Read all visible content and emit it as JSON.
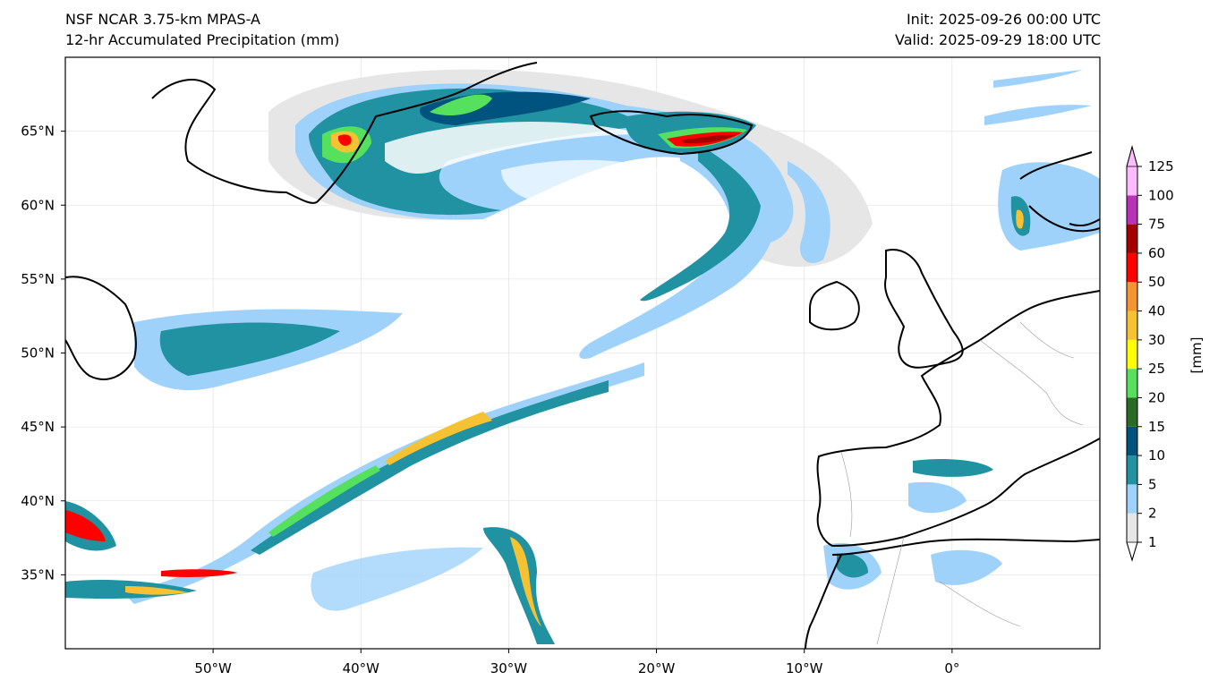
{
  "header": {
    "model": "NSF NCAR 3.75-km MPAS-A",
    "field": "12-hr Accumulated Precipitation (mm)",
    "init": "Init: 2025-09-26 00:00 UTC",
    "valid": "Valid: 2025-09-29 18:00 UTC"
  },
  "map": {
    "projection": "equirectangular",
    "lon_range": [
      -60,
      10
    ],
    "lat_range": [
      30,
      70
    ],
    "lat_ticks": [
      {
        "value": 65,
        "label": "65°N"
      },
      {
        "value": 60,
        "label": "60°N"
      },
      {
        "value": 55,
        "label": "55°N"
      },
      {
        "value": 50,
        "label": "50°N"
      },
      {
        "value": 45,
        "label": "45°N"
      },
      {
        "value": 40,
        "label": "40°N"
      },
      {
        "value": 35,
        "label": "35°N"
      }
    ],
    "lon_ticks": [
      {
        "value": -50,
        "label": "50°W"
      },
      {
        "value": -40,
        "label": "40°W"
      },
      {
        "value": -30,
        "label": "30°W"
      },
      {
        "value": -20,
        "label": "20°W"
      },
      {
        "value": -10,
        "label": "10°W"
      },
      {
        "value": 0,
        "label": "0°"
      }
    ],
    "gridlines": true,
    "regions": [
      "North Atlantic Ocean",
      "Greenland",
      "Iceland",
      "British Isles",
      "Iberian Peninsula",
      "Newfoundland",
      "Scandinavia",
      "North Africa"
    ]
  },
  "colorbar": {
    "unit_label": "[mm]",
    "extend": "both",
    "levels": [
      {
        "value": "1",
        "color": "#e6e6e6"
      },
      {
        "value": "2",
        "color": "#9fd2fb"
      },
      {
        "value": "5",
        "color": "#2092a2"
      },
      {
        "value": "10",
        "color": "#00527f"
      },
      {
        "value": "15",
        "color": "#2a6b26"
      },
      {
        "value": "20",
        "color": "#55e05e"
      },
      {
        "value": "25",
        "color": "#ffff00"
      },
      {
        "value": "30",
        "color": "#f7c232"
      },
      {
        "value": "40",
        "color": "#f39632"
      },
      {
        "value": "50",
        "color": "#ff0000"
      },
      {
        "value": "60",
        "color": "#a50000"
      },
      {
        "value": "75",
        "color": "#b732b7"
      },
      {
        "value": "100",
        "color": "#ffbbff"
      },
      {
        "value": "125",
        "color": ""
      }
    ],
    "under_color": "#ffffff",
    "over_color": "#ffbbff"
  }
}
